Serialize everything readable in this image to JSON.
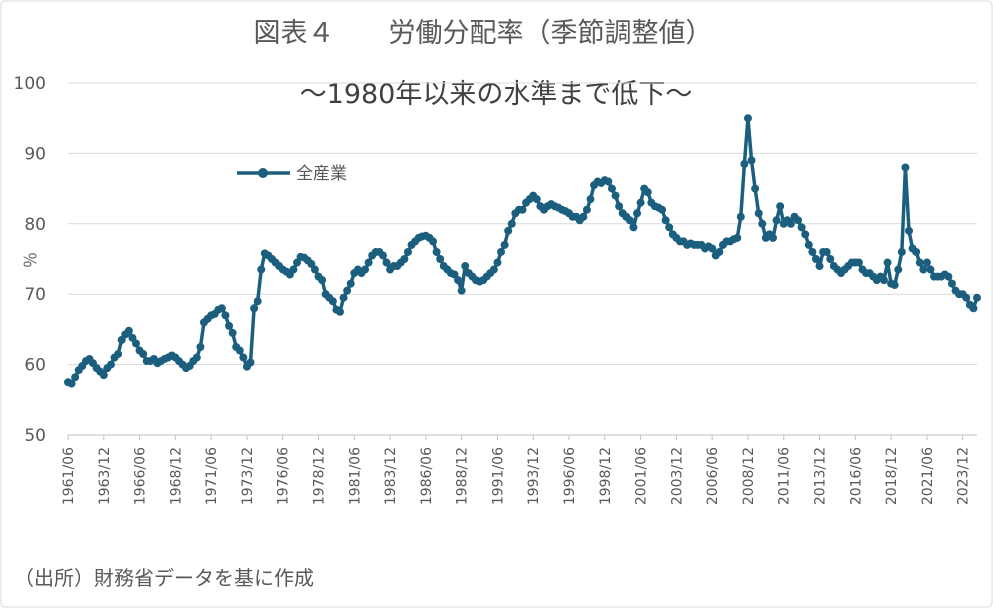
{
  "chart_data": {
    "type": "line",
    "title": "図表４　　労働分配率（季節調整値）",
    "subtitle": "～1980年以来の水準まで低下～",
    "y_label": "％",
    "source": "（出所）財務省データを基に作成",
    "categories": [
      "1961/06",
      null,
      null,
      null,
      null,
      null,
      null,
      null,
      null,
      null,
      "1963/12",
      null,
      null,
      null,
      null,
      null,
      null,
      null,
      null,
      null,
      "1966/06",
      null,
      null,
      null,
      null,
      null,
      null,
      null,
      null,
      null,
      "1968/12",
      null,
      null,
      null,
      null,
      null,
      null,
      null,
      null,
      null,
      "1971/06",
      null,
      null,
      null,
      null,
      null,
      null,
      null,
      null,
      null,
      "1973/12",
      null,
      null,
      null,
      null,
      null,
      null,
      null,
      null,
      null,
      "1976/06",
      null,
      null,
      null,
      null,
      null,
      null,
      null,
      null,
      null,
      "1978/12",
      null,
      null,
      null,
      null,
      null,
      null,
      null,
      null,
      null,
      "1981/06",
      null,
      null,
      null,
      null,
      null,
      null,
      null,
      null,
      null,
      "1983/12",
      null,
      null,
      null,
      null,
      null,
      null,
      null,
      null,
      null,
      "1986/06",
      null,
      null,
      null,
      null,
      null,
      null,
      null,
      null,
      null,
      "1988/12",
      null,
      null,
      null,
      null,
      null,
      null,
      null,
      null,
      null,
      "1991/06",
      null,
      null,
      null,
      null,
      null,
      null,
      null,
      null,
      null,
      "1993/12",
      null,
      null,
      null,
      null,
      null,
      null,
      null,
      null,
      null,
      "1996/06",
      null,
      null,
      null,
      null,
      null,
      null,
      null,
      null,
      null,
      "1998/12",
      null,
      null,
      null,
      null,
      null,
      null,
      null,
      null,
      null,
      "2001/06",
      null,
      null,
      null,
      null,
      null,
      null,
      null,
      null,
      null,
      "2003/12",
      null,
      null,
      null,
      null,
      null,
      null,
      null,
      null,
      null,
      "2006/06",
      null,
      null,
      null,
      null,
      null,
      null,
      null,
      null,
      null,
      "2008/12",
      null,
      null,
      null,
      null,
      null,
      null,
      null,
      null,
      null,
      "2011/06",
      null,
      null,
      null,
      null,
      null,
      null,
      null,
      null,
      null,
      "2013/12",
      null,
      null,
      null,
      null,
      null,
      null,
      null,
      null,
      null,
      "2016/06",
      null,
      null,
      null,
      null,
      null,
      null,
      null,
      null,
      null,
      "2018/12",
      null,
      null,
      null,
      null,
      null,
      null,
      null,
      null,
      null,
      "2021/06",
      null,
      null,
      null,
      null,
      null,
      null,
      null,
      null,
      null,
      "2023/12",
      null,
      null,
      null,
      null
    ],
    "series": [
      {
        "name": "全産業",
        "color": "#1b5e7e",
        "values": [
          57.5,
          57.3,
          58.2,
          59.2,
          59.8,
          60.5,
          60.8,
          60.2,
          59.5,
          59.0,
          58.5,
          59.5,
          60.0,
          61.0,
          61.5,
          63.5,
          64.3,
          64.8,
          63.8,
          63.0,
          62.0,
          61.5,
          60.5,
          60.5,
          60.8,
          60.2,
          60.5,
          60.8,
          61.0,
          61.3,
          61.0,
          60.5,
          60.0,
          59.5,
          59.8,
          60.5,
          61.0,
          62.5,
          66.0,
          66.5,
          67.0,
          67.2,
          67.8,
          68.0,
          67.0,
          65.5,
          64.5,
          62.5,
          62.0,
          61.0,
          59.7,
          60.3,
          68.0,
          69.0,
          73.5,
          75.8,
          75.5,
          75.0,
          74.5,
          74.0,
          73.5,
          73.2,
          72.8,
          73.5,
          74.5,
          75.3,
          75.2,
          74.8,
          74.3,
          73.5,
          72.5,
          72.0,
          70.0,
          69.5,
          69.0,
          67.8,
          67.5,
          69.5,
          70.5,
          71.5,
          73.0,
          73.5,
          73.0,
          73.5,
          74.5,
          75.5,
          76.0,
          76.0,
          75.5,
          74.5,
          73.5,
          74.0,
          74.0,
          74.5,
          75.0,
          76.0,
          77.0,
          77.5,
          78.0,
          78.2,
          78.3,
          78.0,
          77.5,
          76.0,
          75.0,
          74.0,
          73.5,
          73.0,
          72.8,
          72.0,
          70.5,
          74.0,
          73.0,
          72.5,
          72.0,
          71.8,
          72.0,
          72.5,
          73.0,
          73.5,
          74.5,
          76.0,
          77.0,
          79.0,
          80.0,
          81.5,
          82.0,
          82.0,
          83.0,
          83.5,
          84.0,
          83.5,
          82.5,
          82.0,
          82.5,
          82.8,
          82.5,
          82.3,
          82.0,
          81.8,
          81.5,
          81.0,
          81.0,
          80.5,
          81.0,
          82.0,
          83.5,
          85.5,
          86.0,
          85.8,
          86.2,
          86.0,
          85.0,
          84.0,
          82.5,
          81.5,
          81.0,
          80.5,
          79.5,
          81.5,
          83.0,
          85.0,
          84.5,
          83.0,
          82.5,
          82.3,
          82.0,
          80.5,
          79.5,
          78.5,
          78.0,
          77.5,
          77.5,
          77.0,
          77.2,
          77.0,
          77.0,
          77.0,
          76.5,
          76.8,
          76.5,
          75.5,
          76.0,
          77.0,
          77.5,
          77.5,
          77.8,
          78.0,
          81.0,
          88.5,
          95.0,
          89.0,
          85.0,
          81.5,
          80.0,
          78.0,
          78.5,
          78.0,
          80.5,
          82.5,
          80.0,
          80.5,
          80.0,
          81.0,
          80.5,
          79.5,
          78.5,
          77.0,
          76.0,
          75.0,
          74.0,
          76.0,
          76.0,
          75.0,
          74.0,
          73.5,
          73.0,
          73.5,
          74.0,
          74.5,
          74.5,
          74.5,
          73.5,
          73.0,
          73.0,
          72.5,
          72.0,
          72.5,
          72.0,
          74.5,
          71.5,
          71.3,
          73.5,
          76.0,
          88.0,
          79.0,
          76.5,
          76.0,
          74.5,
          73.5,
          74.5,
          73.5,
          72.5,
          72.5,
          72.5,
          72.8,
          72.5,
          71.5,
          70.5,
          70.0,
          70.0,
          69.5,
          68.5,
          68.0,
          69.5
        ]
      }
    ],
    "ylim": [
      50,
      100
    ],
    "yticks": [
      50,
      60,
      70,
      80,
      90,
      100
    ],
    "grid": true
  }
}
